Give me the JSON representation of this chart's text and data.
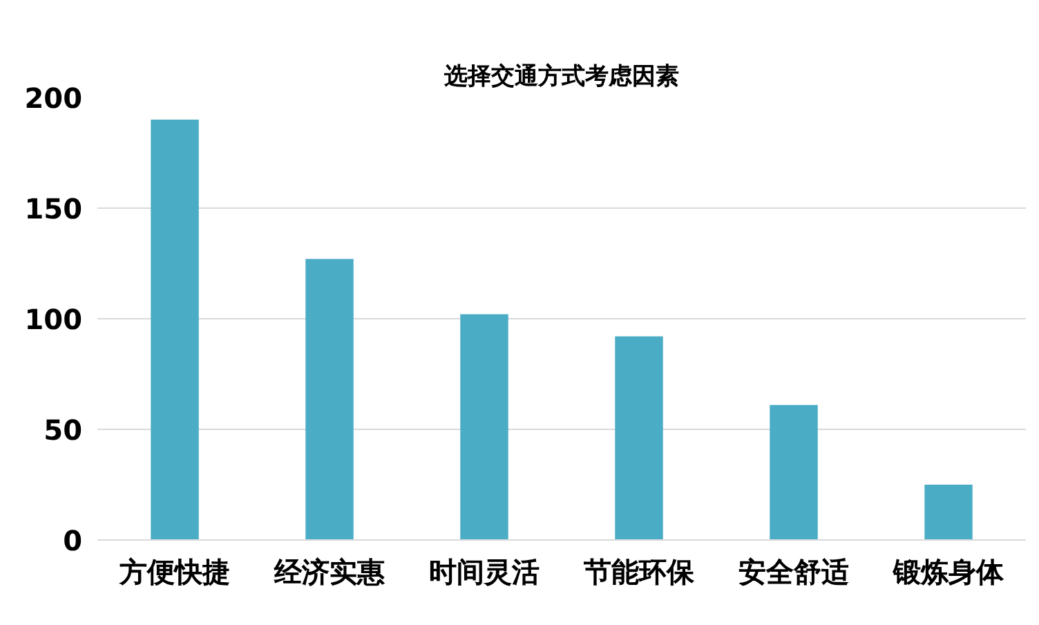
{
  "chart_data": {
    "type": "bar",
    "title": "选择交通方式考虑因素",
    "categories": [
      "方便快捷",
      "经济实惠",
      "时间灵活",
      "节能环保",
      "安全舒适",
      "锻炼身体"
    ],
    "values": [
      190,
      127,
      102,
      92,
      61,
      25
    ],
    "color": "#4bacc6",
    "ylim": [
      0,
      200
    ],
    "yticks": [
      0,
      50,
      100,
      150,
      200
    ],
    "grid": "y"
  }
}
